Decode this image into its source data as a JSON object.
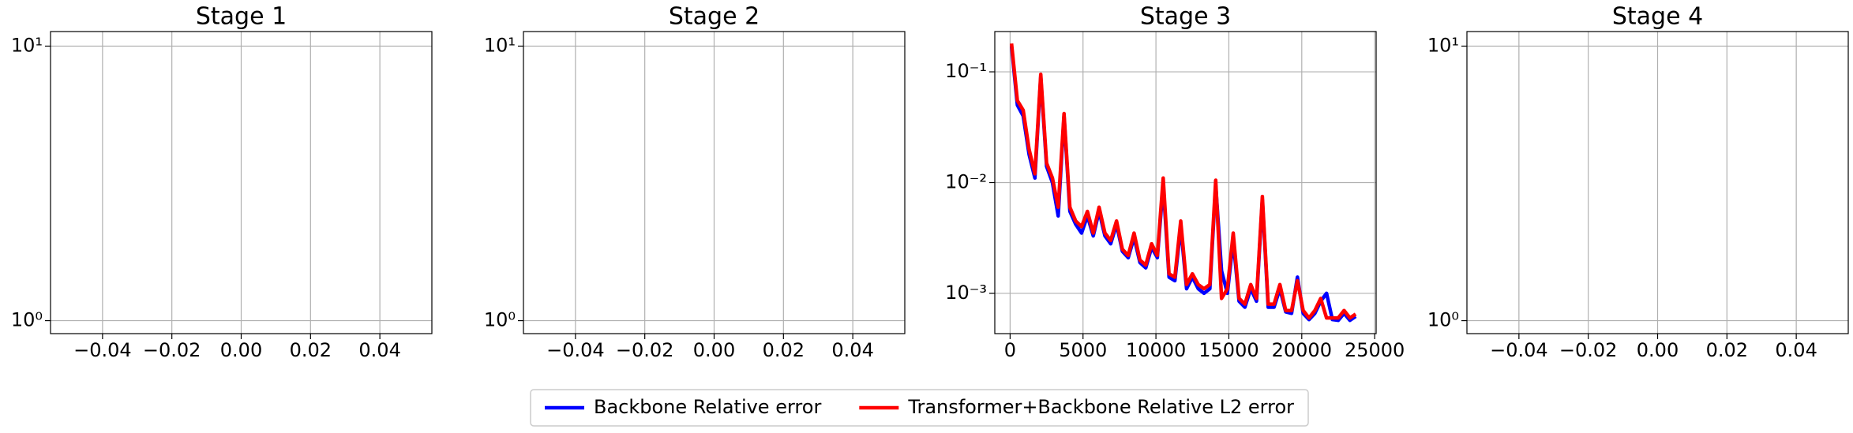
{
  "chart_data": [
    {
      "type": "line",
      "title": "Stage 1",
      "log_y": true,
      "grid": true,
      "xlim": [
        -0.055,
        0.055
      ],
      "xticks": [
        {
          "value": -0.04,
          "label": "−0.04"
        },
        {
          "value": -0.02,
          "label": "−0.02"
        },
        {
          "value": 0,
          "label": "0.00"
        },
        0.02,
        0.04
      ],
      "ylim": [
        0.897,
        11.3
      ],
      "yticks": [
        {
          "value": 1,
          "label": "10⁰"
        },
        {
          "value": 10,
          "label": "10¹"
        }
      ],
      "x": [],
      "series": []
    },
    {
      "type": "line",
      "title": "Stage 2",
      "log_y": true,
      "grid": true,
      "xlim": [
        -0.055,
        0.055
      ],
      "xticks": [
        {
          "value": -0.04,
          "label": "−0.04"
        },
        {
          "value": -0.02,
          "label": "−0.02"
        },
        {
          "value": 0,
          "label": "0.00"
        },
        0.02,
        0.04
      ],
      "ylim": [
        0.897,
        11.3
      ],
      "yticks": [
        {
          "value": 1,
          "label": "10⁰"
        },
        {
          "value": 10,
          "label": "10¹"
        }
      ],
      "x": [],
      "series": []
    },
    {
      "type": "line",
      "title": "Stage 3",
      "log_y": true,
      "grid": true,
      "legend": "below",
      "xlim": [
        -1050,
        25100
      ],
      "xticks": [
        0,
        5000,
        10000,
        15000,
        20000,
        25000
      ],
      "ylim": [
        0.000433,
        0.231
      ],
      "yticks": [
        {
          "value": 0.001,
          "label": "10⁻³"
        },
        {
          "value": 0.01,
          "label": "10⁻²"
        },
        {
          "value": 0.1,
          "label": "10⁻¹"
        }
      ],
      "x": [
        100,
        500,
        900,
        1300,
        1700,
        2100,
        2500,
        2900,
        3300,
        3700,
        4100,
        4500,
        4900,
        5300,
        5700,
        6100,
        6500,
        6900,
        7300,
        7700,
        8100,
        8500,
        8900,
        9300,
        9700,
        10100,
        10500,
        10900,
        11300,
        11700,
        12100,
        12500,
        12900,
        13300,
        13700,
        14100,
        14500,
        14900,
        15300,
        15700,
        16100,
        16500,
        16900,
        17300,
        17700,
        18100,
        18500,
        18900,
        19300,
        19700,
        20100,
        20500,
        20900,
        21300,
        21700,
        22100,
        22500,
        22900,
        23300,
        23700
      ],
      "series": [
        {
          "name": "Backbone Relative error",
          "color": "#0000ff",
          "values": [
            0.17,
            0.05,
            0.04,
            0.018,
            0.011,
            0.09,
            0.014,
            0.01,
            0.005,
            0.04,
            0.0055,
            0.0042,
            0.0035,
            0.005,
            0.0033,
            0.0055,
            0.0033,
            0.0028,
            0.0042,
            0.0024,
            0.0021,
            0.0032,
            0.0019,
            0.0017,
            0.0026,
            0.0021,
            0.0095,
            0.0014,
            0.0013,
            0.004,
            0.0011,
            0.0014,
            0.0011,
            0.001,
            0.0011,
            0.0095,
            0.0016,
            0.001,
            0.003,
            0.00085,
            0.00075,
            0.0011,
            0.00085,
            0.007,
            0.00075,
            0.00075,
            0.0011,
            0.00068,
            0.00066,
            0.0014,
            0.00066,
            0.00058,
            0.00066,
            0.00085,
            0.001,
            0.00058,
            0.00057,
            0.00066,
            0.00057,
            0.00062
          ]
        },
        {
          "name": "Transformer+Backbone Relative L2 error",
          "color": "#ff0000",
          "values": [
            0.18,
            0.055,
            0.045,
            0.02,
            0.012,
            0.095,
            0.015,
            0.011,
            0.006,
            0.042,
            0.006,
            0.0045,
            0.004,
            0.0055,
            0.0035,
            0.006,
            0.0035,
            0.003,
            0.0045,
            0.0025,
            0.0022,
            0.0035,
            0.002,
            0.0018,
            0.0028,
            0.0022,
            0.011,
            0.0015,
            0.0014,
            0.0045,
            0.0012,
            0.0015,
            0.0012,
            0.0011,
            0.0012,
            0.0105,
            0.0009,
            0.0011,
            0.0035,
            0.0009,
            0.0008,
            0.0012,
            0.0009,
            0.0075,
            0.0008,
            0.0008,
            0.0012,
            0.0007,
            0.0007,
            0.0013,
            0.0007,
            0.0006,
            0.0007,
            0.0009,
            0.0006,
            0.0006,
            0.0006,
            0.0007,
            0.0006,
            0.00065
          ]
        }
      ]
    },
    {
      "type": "line",
      "title": "Stage 4",
      "log_y": true,
      "grid": true,
      "xlim": [
        -0.055,
        0.055
      ],
      "xticks": [
        {
          "value": -0.04,
          "label": "−0.04"
        },
        {
          "value": -0.02,
          "label": "−0.02"
        },
        {
          "value": 0,
          "label": "0.00"
        },
        0.02,
        0.04
      ],
      "ylim": [
        0.897,
        11.3
      ],
      "yticks": [
        {
          "value": 1,
          "label": "10⁰"
        },
        {
          "value": 10,
          "label": "10¹"
        }
      ],
      "x": [],
      "series": []
    }
  ]
}
